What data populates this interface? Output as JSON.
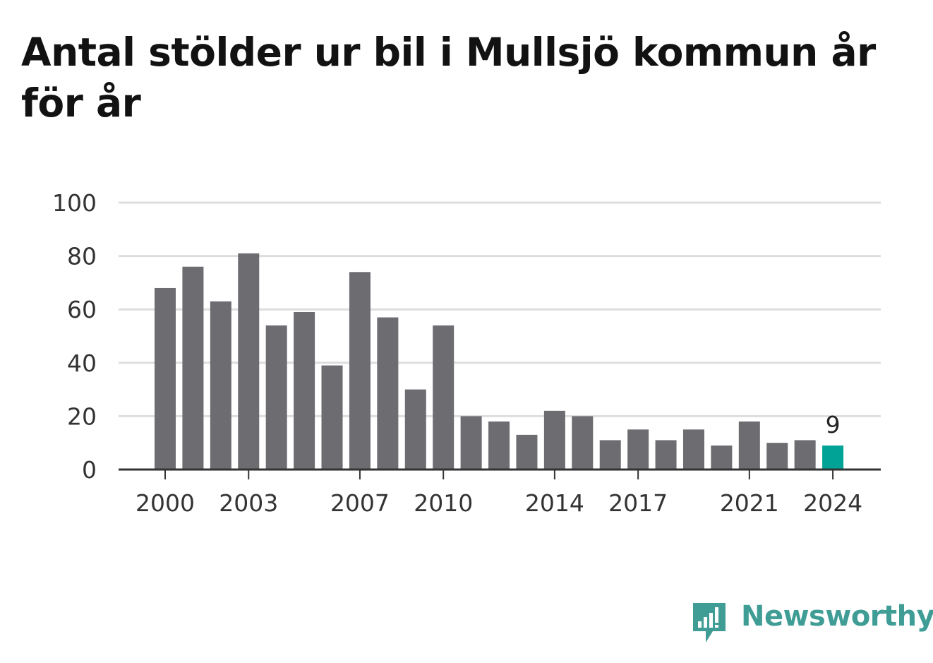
{
  "title": "Antal stölder ur bil i Mullsjö kommun år för år",
  "brand": {
    "name": "Newsworthy",
    "icon": "newsworthy-logo-icon",
    "color": "#3f9d96"
  },
  "colors": {
    "bar": "#6d6c71",
    "highlight": "#00a395",
    "grid": "#dddddd",
    "axis": "#333333"
  },
  "chart_data": {
    "type": "bar",
    "title": "Antal stölder ur bil i Mullsjö kommun år för år",
    "xlabel": "",
    "ylabel": "",
    "ylim": [
      0,
      100
    ],
    "yticks": [
      0,
      20,
      40,
      60,
      80,
      100
    ],
    "categories": [
      "2000",
      "2001",
      "2002",
      "2003",
      "2004",
      "2005",
      "2006",
      "2007",
      "2008",
      "2009",
      "2010",
      "2011",
      "2012",
      "2013",
      "2014",
      "2015",
      "2016",
      "2017",
      "2018",
      "2019",
      "2020",
      "2021",
      "2022",
      "2023",
      "2024"
    ],
    "xtick_labels": [
      "2000",
      "2003",
      "2007",
      "2010",
      "2014",
      "2017",
      "2021",
      "2024"
    ],
    "values": [
      68,
      76,
      63,
      81,
      54,
      59,
      39,
      74,
      57,
      30,
      54,
      20,
      18,
      13,
      22,
      20,
      11,
      15,
      11,
      15,
      9,
      18,
      10,
      11,
      9
    ],
    "highlight": {
      "category": "2024",
      "label": "9"
    },
    "grid": true
  }
}
